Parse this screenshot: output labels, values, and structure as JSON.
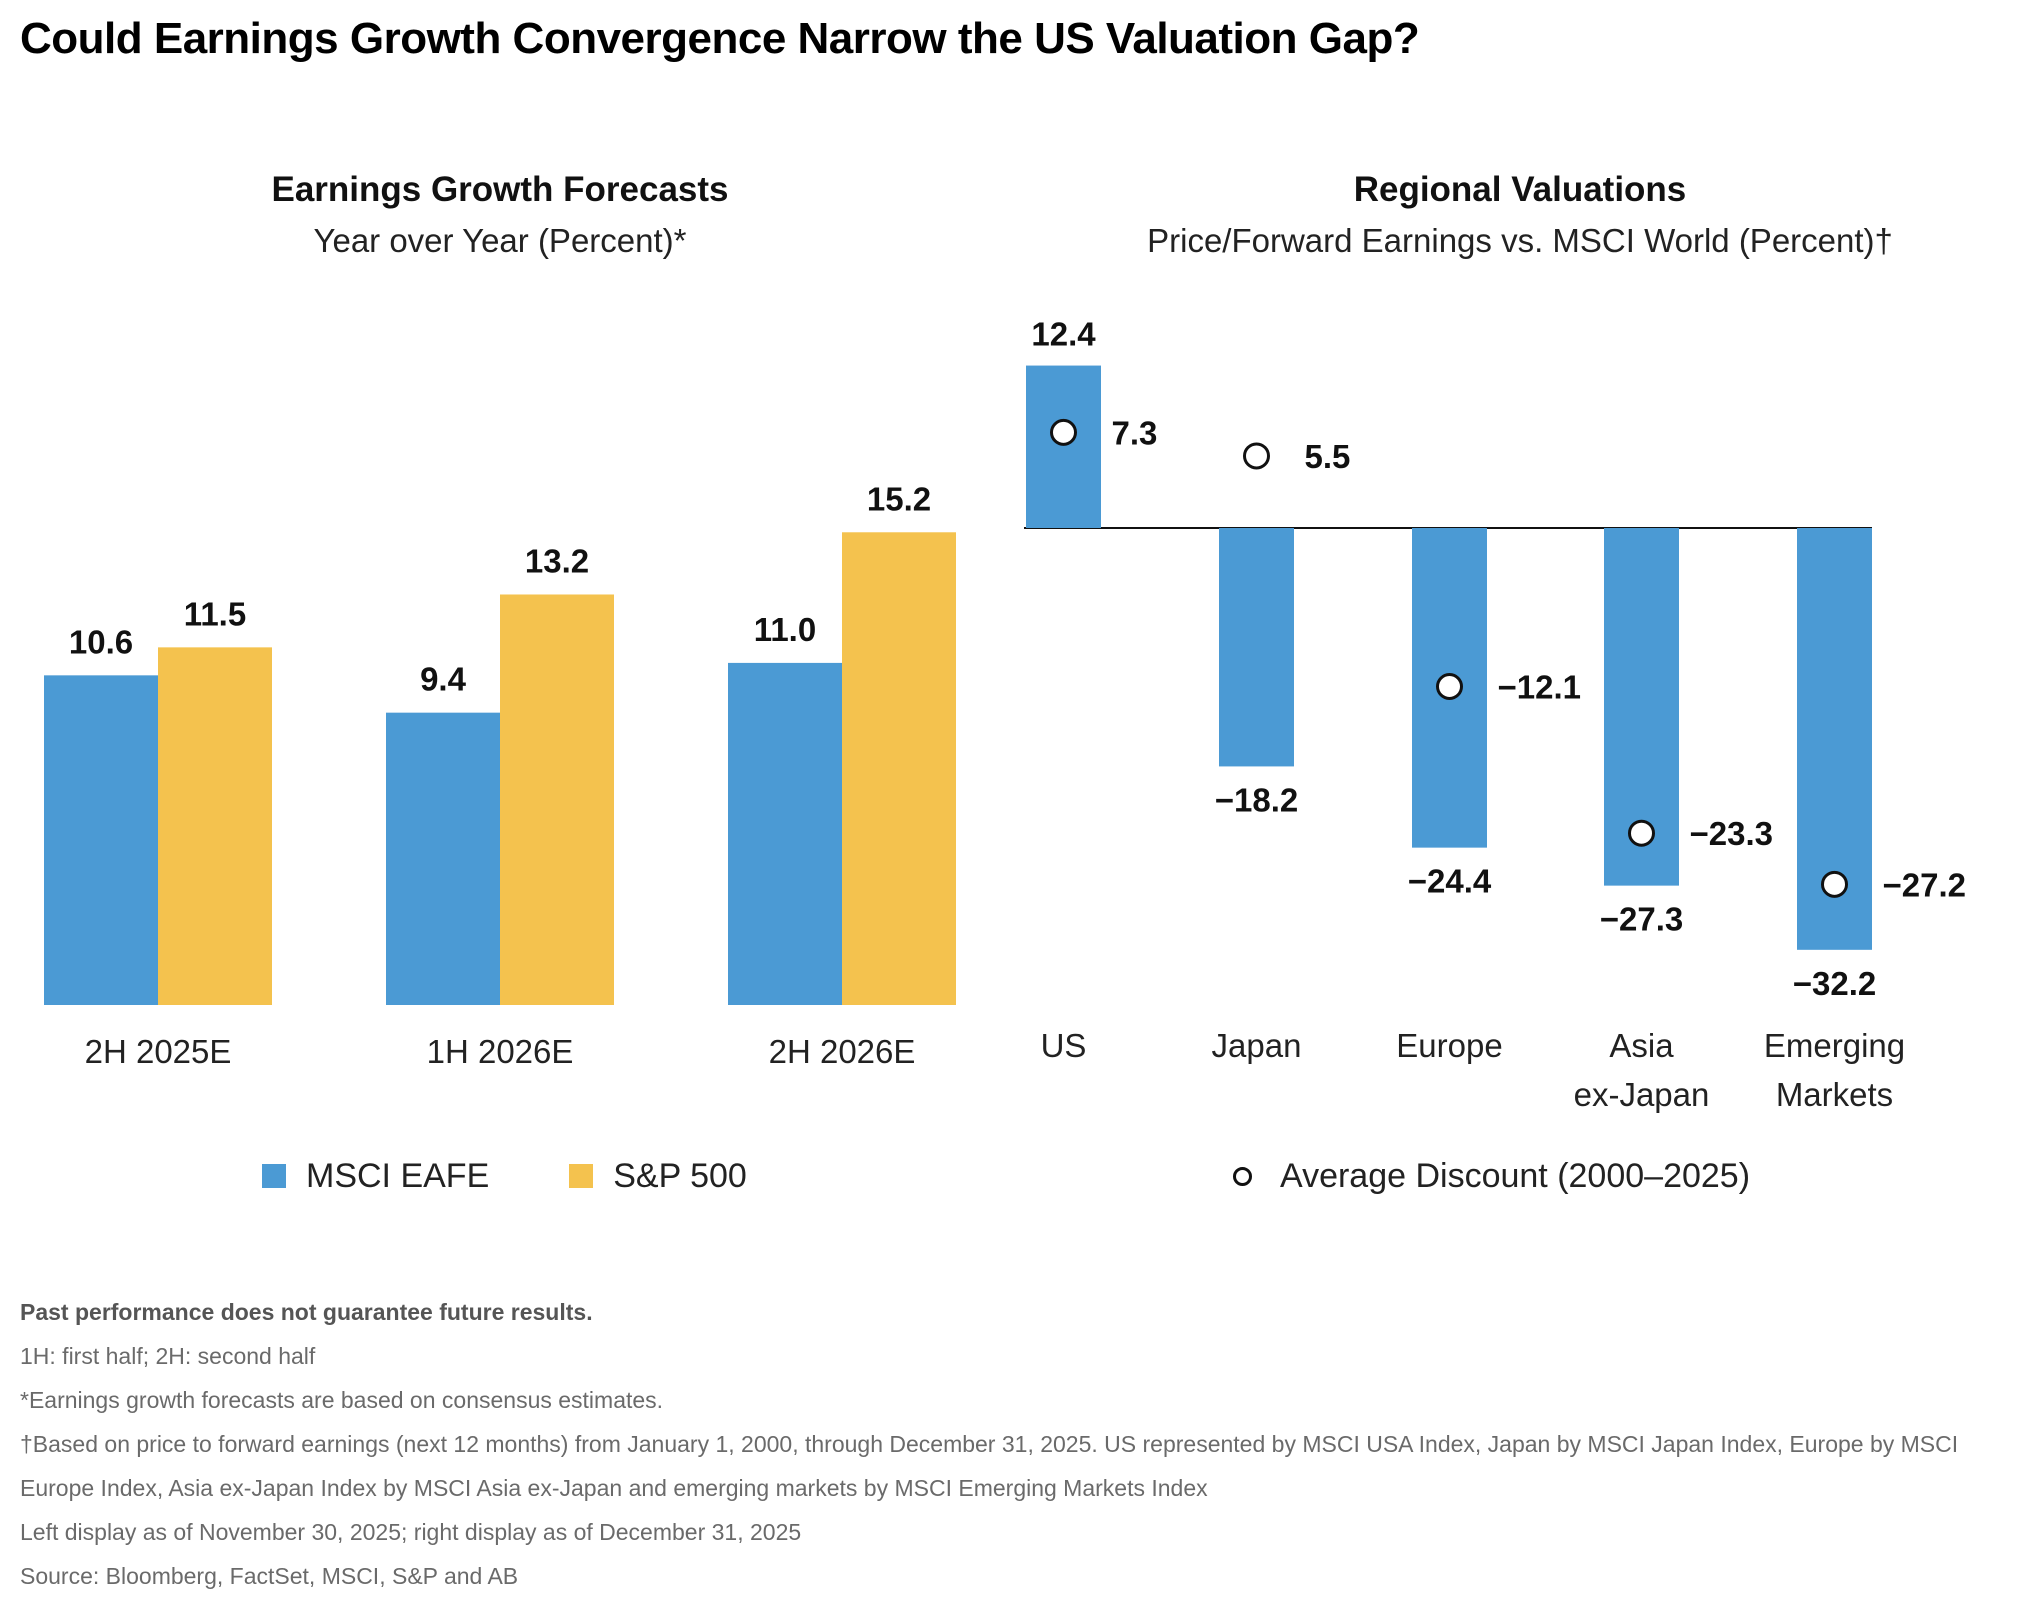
{
  "title": "Could Earnings Growth Convergence Narrow the US Valuation Gap?",
  "colors": {
    "eafe": "#4B9AD4",
    "sp500": "#F4C24E",
    "marker": "#111111"
  },
  "chart_data": [
    {
      "type": "bar",
      "title": "Earnings Growth Forecasts",
      "subtitle": "Year over Year (Percent)*",
      "categories": [
        "2H 2025E",
        "1H 2026E",
        "2H 2026E"
      ],
      "series": [
        {
          "name": "MSCI EAFE",
          "values": [
            10.6,
            9.4,
            11.0
          ],
          "labels": [
            "10.6",
            "9.4",
            "11.0"
          ]
        },
        {
          "name": "S&P 500",
          "values": [
            11.5,
            13.2,
            15.2
          ],
          "labels": [
            "11.5",
            "13.2",
            "15.2"
          ]
        }
      ],
      "ylim": [
        0,
        16
      ],
      "grid": false,
      "legend_position": "bottom"
    },
    {
      "type": "bar",
      "title": "Regional Valuations",
      "subtitle": "Price/Forward Earnings vs. MSCI World (Percent)†",
      "categories": [
        [
          "US"
        ],
        [
          "Japan"
        ],
        [
          "Europe"
        ],
        [
          "Asia",
          "ex-Japan"
        ],
        [
          "Emerging",
          "Markets"
        ]
      ],
      "values": [
        12.4,
        -18.2,
        -24.4,
        -27.3,
        -32.2
      ],
      "value_labels": [
        "12.4",
        "−18.2",
        "−24.4",
        "−27.3",
        "−32.2"
      ],
      "average_discount": {
        "name": "Average Discount (2000–2025)",
        "values": [
          7.3,
          5.5,
          -12.1,
          -23.3,
          -27.2
        ],
        "labels": [
          "7.3",
          "5.5",
          "−12.1",
          "−23.3",
          "−27.2"
        ]
      },
      "ylim": [
        -35,
        14
      ],
      "grid": false,
      "legend_position": "bottom"
    }
  ],
  "notes": {
    "disclaimer": "Past performance does not guarantee future results.",
    "abbrev": "1H: first half; 2H: second half",
    "star": "*Earnings growth forecasts are based on consensus estimates.",
    "dagger": "†Based on price to forward earnings (next 12 months) from January 1, 2000, through December 31, 2025. US represented by MSCI USA Index, Japan by MSCI Japan Index, Europe by MSCI Europe Index, Asia ex-Japan Index by MSCI Asia ex-Japan and emerging markets by MSCI Emerging Markets Index",
    "dates": "Left display as of November 30, 2025; right display as of December 31, 2025",
    "source": "Source: Bloomberg, FactSet, MSCI, S&P and AB"
  }
}
